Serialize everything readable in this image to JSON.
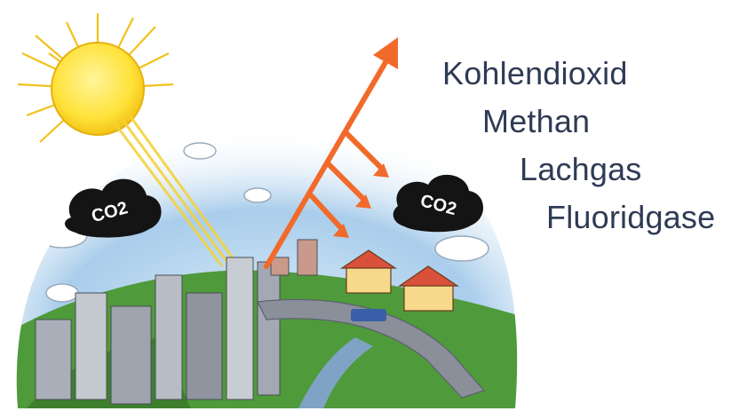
{
  "gases": [
    "Kohlendioxid",
    "Methan",
    "Lachgas",
    "Fluoridgase"
  ],
  "cloud_labels": [
    "CO2",
    "CO2"
  ],
  "colors": {
    "sky": "#a9cdeb",
    "sun": "#ffe23a",
    "sun_rays": "#f2c21b",
    "arrow": "#f26a2a",
    "greenery": "#4f9a3a",
    "road": "#8a8f99",
    "text": "#2f3b55"
  }
}
